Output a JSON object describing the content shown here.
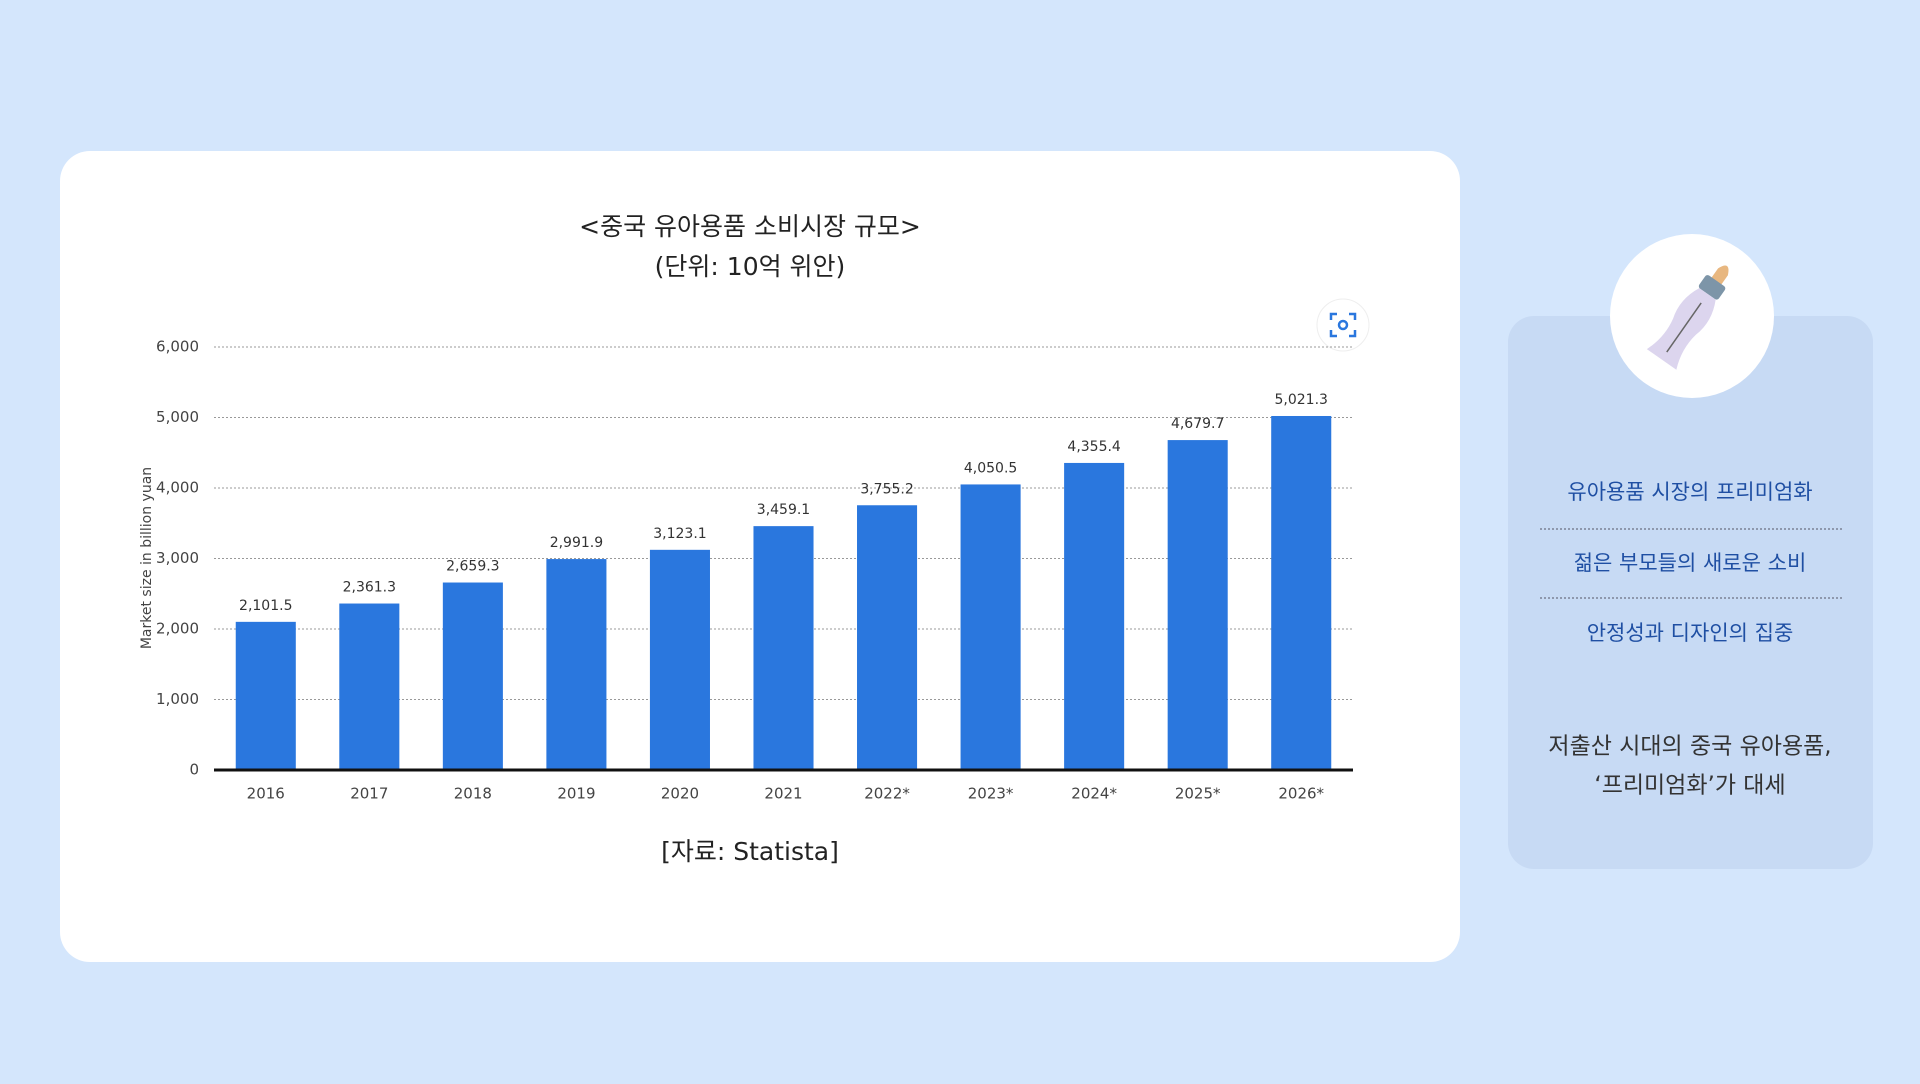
{
  "chart_data": {
    "type": "bar",
    "title": "<중국 유아용품 소비시장 규모>",
    "subtitle": "(단위: 10억 위안)",
    "y_label": "Market size in billion yuan",
    "source": "[자료: Statista]",
    "categories": [
      "2016",
      "2017",
      "2018",
      "2019",
      "2020",
      "2021",
      "2022*",
      "2023*",
      "2024*",
      "2025*",
      "2026*"
    ],
    "values": [
      2101.5,
      2361.3,
      2659.3,
      2991.9,
      3123.1,
      3459.1,
      3755.2,
      4050.5,
      4355.4,
      4679.7,
      5021.3
    ],
    "value_labels": [
      "2,101.5",
      "2,361.3",
      "2,659.3",
      "2,991.9",
      "3,123.1",
      "3,459.1",
      "3,755.2",
      "4,050.5",
      "4,355.4",
      "4,679.7",
      "5,021.3"
    ],
    "color": "#2a77de",
    "ylim": [
      0,
      6000
    ],
    "yticks": [
      0,
      {
        "value": 1000,
        "label": "1,000"
      },
      {
        "value": 2000,
        "label": "2,000"
      },
      {
        "value": 3000,
        "label": "3,000"
      },
      {
        "value": 4000,
        "label": "4,000"
      },
      {
        "value": 5000,
        "label": "5,000"
      },
      {
        "value": 6000,
        "label": "6,000"
      }
    ],
    "grid": true
  },
  "sidebar": {
    "items": [
      "유아용품 시장의 프리미엄화",
      "젊은 부모들의 새로운 소비",
      "안정성과 디자인의 집중"
    ],
    "caption": [
      "저출산 시대의 중국 유아용품,",
      "‘프리미엄화’가 대세"
    ]
  }
}
